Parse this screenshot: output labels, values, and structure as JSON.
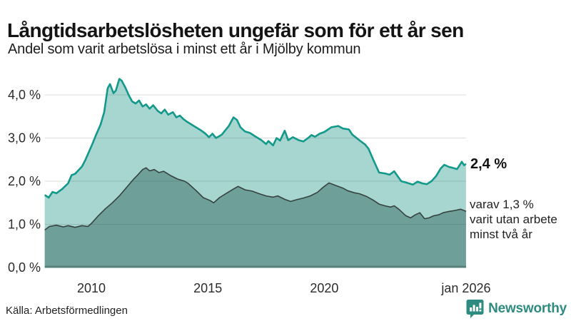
{
  "header": {
    "title": "Långtidsarbetslösheten ungefär som för ett år sen",
    "subtitle": "Andel som varit arbetslösa i minst ett år i Mjölby kommun"
  },
  "footer": {
    "source": "Källa: Arbetsförmedlingen",
    "logo_text": "Newsworthy",
    "logo_color": "#2e8b80"
  },
  "chart_data": {
    "type": "area",
    "title": "Långtidsarbetslösheten ungefär som för ett år sen",
    "subtitle": "Andel som varit arbetslösa i minst ett år i Mjölby kommun",
    "grid": "horizontal",
    "colors": {
      "grid": "#d9d9dc",
      "baseline": "#57827b",
      "series1_line": "#13998b",
      "series1_fill": "#a6d6cf",
      "series2_line": "#36423f",
      "series2_fill": "#6f9f99"
    },
    "x_axis": {
      "range": [
        2008.0,
        2026.083
      ],
      "ticks": [
        {
          "x": 2010,
          "label": "2010"
        },
        {
          "x": 2015,
          "label": "2015"
        },
        {
          "x": 2020,
          "label": "2020"
        },
        {
          "x": 2026.083,
          "label": "jan 2026"
        }
      ]
    },
    "y_axis": {
      "range": [
        0,
        4.6
      ],
      "unit": "%",
      "ticks": [
        {
          "value": 0,
          "label": "0,0 %"
        },
        {
          "value": 1,
          "label": "1,0 %"
        },
        {
          "value": 2,
          "label": "2,0 %"
        },
        {
          "value": 3,
          "label": "3,0 %"
        },
        {
          "value": 4,
          "label": "4,0 %"
        }
      ]
    },
    "series": [
      {
        "name": "minst ett år",
        "end_value_label": "2,4 %",
        "points": [
          [
            2008.0,
            1.68
          ],
          [
            2008.17,
            1.62
          ],
          [
            2008.33,
            1.75
          ],
          [
            2008.5,
            1.72
          ],
          [
            2008.75,
            1.82
          ],
          [
            2009.0,
            1.95
          ],
          [
            2009.15,
            2.14
          ],
          [
            2009.3,
            2.17
          ],
          [
            2009.6,
            2.34
          ],
          [
            2009.75,
            2.5
          ],
          [
            2010.05,
            2.87
          ],
          [
            2010.2,
            3.07
          ],
          [
            2010.4,
            3.32
          ],
          [
            2010.55,
            3.6
          ],
          [
            2010.7,
            4.15
          ],
          [
            2010.8,
            4.25
          ],
          [
            2010.95,
            4.04
          ],
          [
            2011.05,
            4.1
          ],
          [
            2011.2,
            4.37
          ],
          [
            2011.3,
            4.33
          ],
          [
            2011.45,
            4.18
          ],
          [
            2011.6,
            4.0
          ],
          [
            2011.75,
            3.85
          ],
          [
            2011.9,
            3.8
          ],
          [
            2012.05,
            3.87
          ],
          [
            2012.2,
            3.73
          ],
          [
            2012.35,
            3.78
          ],
          [
            2012.5,
            3.68
          ],
          [
            2012.65,
            3.76
          ],
          [
            2012.85,
            3.63
          ],
          [
            2013.0,
            3.57
          ],
          [
            2013.15,
            3.66
          ],
          [
            2013.3,
            3.54
          ],
          [
            2013.5,
            3.6
          ],
          [
            2013.65,
            3.48
          ],
          [
            2013.8,
            3.52
          ],
          [
            2013.95,
            3.44
          ],
          [
            2014.1,
            3.38
          ],
          [
            2014.4,
            3.28
          ],
          [
            2014.7,
            3.18
          ],
          [
            2014.9,
            3.1
          ],
          [
            2015.05,
            3.02
          ],
          [
            2015.2,
            3.1
          ],
          [
            2015.35,
            3.0
          ],
          [
            2015.6,
            3.08
          ],
          [
            2015.9,
            3.28
          ],
          [
            2016.1,
            3.48
          ],
          [
            2016.25,
            3.42
          ],
          [
            2016.4,
            3.25
          ],
          [
            2016.6,
            3.15
          ],
          [
            2016.8,
            3.12
          ],
          [
            2017.0,
            3.05
          ],
          [
            2017.3,
            2.95
          ],
          [
            2017.5,
            2.86
          ],
          [
            2017.6,
            2.93
          ],
          [
            2017.8,
            2.83
          ],
          [
            2017.95,
            3.0
          ],
          [
            2018.1,
            2.94
          ],
          [
            2018.3,
            3.17
          ],
          [
            2018.45,
            2.95
          ],
          [
            2018.65,
            3.02
          ],
          [
            2018.9,
            2.95
          ],
          [
            2019.1,
            2.92
          ],
          [
            2019.3,
            3.0
          ],
          [
            2019.45,
            3.07
          ],
          [
            2019.6,
            3.03
          ],
          [
            2019.8,
            3.1
          ],
          [
            2020.0,
            3.14
          ],
          [
            2020.3,
            3.25
          ],
          [
            2020.6,
            3.28
          ],
          [
            2020.8,
            3.22
          ],
          [
            2021.05,
            3.2
          ],
          [
            2021.2,
            3.08
          ],
          [
            2021.5,
            2.95
          ],
          [
            2021.75,
            2.85
          ],
          [
            2021.9,
            2.75
          ],
          [
            2022.1,
            2.5
          ],
          [
            2022.35,
            2.2
          ],
          [
            2022.6,
            2.18
          ],
          [
            2022.8,
            2.15
          ],
          [
            2023.0,
            2.23
          ],
          [
            2023.3,
            2.0
          ],
          [
            2023.5,
            1.97
          ],
          [
            2023.8,
            1.92
          ],
          [
            2024.0,
            1.99
          ],
          [
            2024.2,
            1.95
          ],
          [
            2024.4,
            1.93
          ],
          [
            2024.6,
            2.0
          ],
          [
            2024.8,
            2.12
          ],
          [
            2025.0,
            2.3
          ],
          [
            2025.15,
            2.38
          ],
          [
            2025.35,
            2.33
          ],
          [
            2025.5,
            2.31
          ],
          [
            2025.7,
            2.28
          ],
          [
            2025.9,
            2.45
          ],
          [
            2026.0,
            2.37
          ],
          [
            2026.083,
            2.4
          ]
        ]
      },
      {
        "name": "minst två år",
        "end_value_label": "1,3 %",
        "points": [
          [
            2008.0,
            0.87
          ],
          [
            2008.2,
            0.95
          ],
          [
            2008.5,
            0.98
          ],
          [
            2008.8,
            0.94
          ],
          [
            2009.0,
            0.97
          ],
          [
            2009.3,
            0.93
          ],
          [
            2009.6,
            0.97
          ],
          [
            2009.85,
            0.95
          ],
          [
            2010.0,
            1.02
          ],
          [
            2010.3,
            1.2
          ],
          [
            2010.6,
            1.36
          ],
          [
            2010.9,
            1.5
          ],
          [
            2011.2,
            1.66
          ],
          [
            2011.5,
            1.85
          ],
          [
            2011.8,
            2.04
          ],
          [
            2012.0,
            2.15
          ],
          [
            2012.2,
            2.27
          ],
          [
            2012.35,
            2.31
          ],
          [
            2012.5,
            2.24
          ],
          [
            2012.7,
            2.27
          ],
          [
            2012.9,
            2.2
          ],
          [
            2013.1,
            2.23
          ],
          [
            2013.4,
            2.13
          ],
          [
            2013.7,
            2.05
          ],
          [
            2014.0,
            2.0
          ],
          [
            2014.15,
            1.95
          ],
          [
            2014.5,
            1.78
          ],
          [
            2014.8,
            1.62
          ],
          [
            2015.1,
            1.55
          ],
          [
            2015.25,
            1.5
          ],
          [
            2015.5,
            1.62
          ],
          [
            2015.8,
            1.72
          ],
          [
            2016.1,
            1.82
          ],
          [
            2016.3,
            1.88
          ],
          [
            2016.6,
            1.8
          ],
          [
            2016.9,
            1.77
          ],
          [
            2017.2,
            1.71
          ],
          [
            2017.5,
            1.66
          ],
          [
            2017.8,
            1.63
          ],
          [
            2018.0,
            1.66
          ],
          [
            2018.3,
            1.58
          ],
          [
            2018.55,
            1.53
          ],
          [
            2018.8,
            1.57
          ],
          [
            2019.1,
            1.61
          ],
          [
            2019.4,
            1.66
          ],
          [
            2019.7,
            1.74
          ],
          [
            2019.95,
            1.86
          ],
          [
            2020.2,
            1.96
          ],
          [
            2020.5,
            1.9
          ],
          [
            2020.8,
            1.84
          ],
          [
            2021.0,
            1.78
          ],
          [
            2021.3,
            1.73
          ],
          [
            2021.5,
            1.71
          ],
          [
            2021.8,
            1.65
          ],
          [
            2022.1,
            1.56
          ],
          [
            2022.35,
            1.47
          ],
          [
            2022.6,
            1.43
          ],
          [
            2022.85,
            1.4
          ],
          [
            2023.0,
            1.43
          ],
          [
            2023.2,
            1.35
          ],
          [
            2023.5,
            1.2
          ],
          [
            2023.7,
            1.15
          ],
          [
            2023.9,
            1.22
          ],
          [
            2024.1,
            1.27
          ],
          [
            2024.3,
            1.13
          ],
          [
            2024.5,
            1.15
          ],
          [
            2024.7,
            1.2
          ],
          [
            2024.9,
            1.22
          ],
          [
            2025.1,
            1.27
          ],
          [
            2025.35,
            1.3
          ],
          [
            2025.6,
            1.32
          ],
          [
            2025.85,
            1.35
          ],
          [
            2026.0,
            1.32
          ],
          [
            2026.083,
            1.3
          ]
        ]
      }
    ],
    "annotations": {
      "end_label": "2,4 %",
      "note_line1": "varav 1,3 %",
      "note_line2": "varit utan arbete",
      "note_line3": "minst två år"
    },
    "legend": "none"
  }
}
